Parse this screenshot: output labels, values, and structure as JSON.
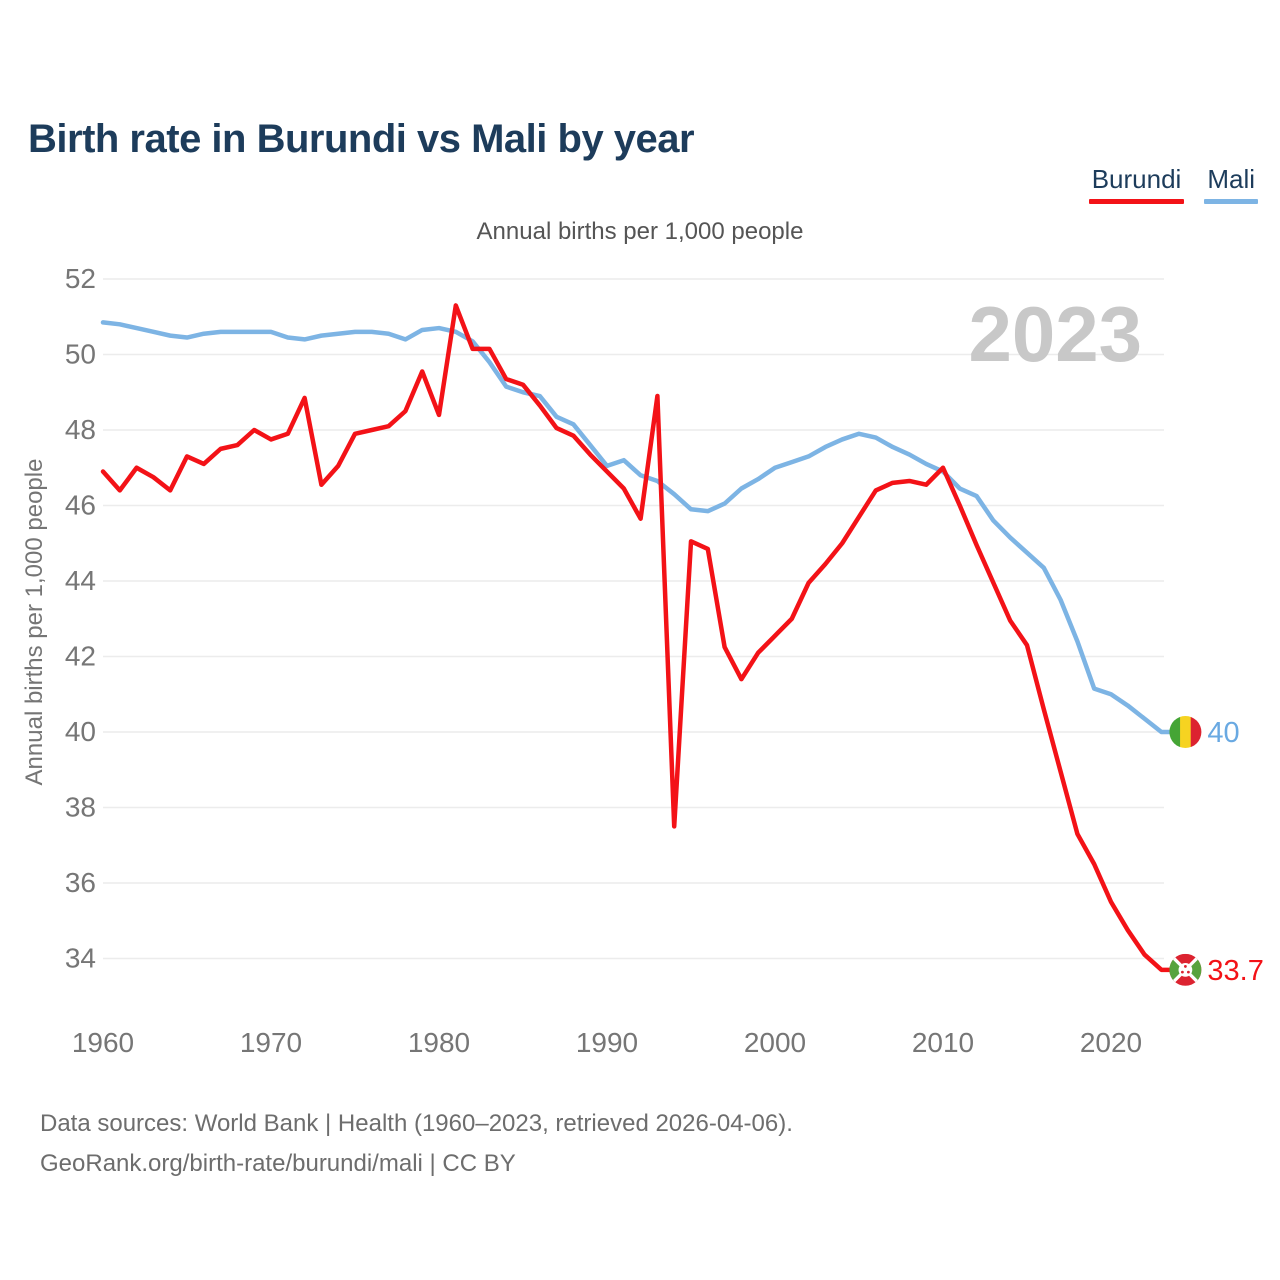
{
  "title": "Birth rate in Burundi vs Mali by year",
  "legend": [
    {
      "label": "Burundi",
      "color": "#f31217"
    },
    {
      "label": "Mali",
      "color": "#7db4e4"
    }
  ],
  "footer": {
    "line1": "Data sources: World Bank | Health (1960–2023, retrieved 2026-04-06).",
    "line2": "GeoRank.org/birth-rate/burundi/mali | CC BY"
  },
  "chart_data": {
    "type": "line",
    "title": "Annual births per 1,000 people",
    "ylabel": "Annual births per 1,000 people",
    "watermark": "2023",
    "x_start": 1960,
    "x_end": 2023,
    "x_ticks": [
      1960,
      1970,
      1980,
      1990,
      2000,
      2010,
      2020
    ],
    "y_ticks": [
      34,
      36,
      38,
      40,
      42,
      44,
      46,
      48,
      50,
      52
    ],
    "ylim": [
      33.2,
      52.6
    ],
    "grid": "horizontal",
    "legend_position": "top-right",
    "series": [
      {
        "name": "Mali",
        "color": "#7db4e4",
        "label_color": "#69a9e2",
        "end_label": "40",
        "flag": "mali",
        "values": [
          50.85,
          50.8,
          50.7,
          50.6,
          50.5,
          50.45,
          50.55,
          50.6,
          50.6,
          50.6,
          50.6,
          50.45,
          50.4,
          50.5,
          50.55,
          50.6,
          50.6,
          50.55,
          50.4,
          50.65,
          50.7,
          50.6,
          50.35,
          49.8,
          49.15,
          49.0,
          48.9,
          48.35,
          48.15,
          47.6,
          47.05,
          47.2,
          46.8,
          46.65,
          46.3,
          45.9,
          45.85,
          46.05,
          46.45,
          46.7,
          47.0,
          47.15,
          47.3,
          47.55,
          47.75,
          47.9,
          47.8,
          47.55,
          47.35,
          47.1,
          46.9,
          46.45,
          46.25,
          45.6,
          45.15,
          44.75,
          44.35,
          43.5,
          42.4,
          41.15,
          41.0,
          40.7,
          40.35,
          40.0
        ]
      },
      {
        "name": "Burundi",
        "color": "#f31217",
        "label_color": "#f31217",
        "end_label": "33.7",
        "flag": "burundi",
        "values": [
          46.9,
          46.4,
          47.0,
          46.75,
          46.4,
          47.3,
          47.1,
          47.5,
          47.6,
          48.0,
          47.75,
          47.9,
          48.85,
          46.55,
          47.05,
          47.9,
          48.0,
          48.1,
          48.5,
          49.55,
          48.4,
          51.3,
          50.15,
          50.15,
          49.35,
          49.2,
          48.65,
          48.05,
          47.85,
          47.35,
          46.9,
          46.45,
          45.65,
          48.9,
          37.5,
          45.05,
          44.85,
          42.25,
          41.4,
          42.1,
          42.55,
          43.0,
          43.95,
          44.45,
          45.0,
          45.7,
          46.4,
          46.6,
          46.65,
          46.55,
          47.0,
          46.0,
          44.95,
          43.95,
          42.95,
          42.3,
          40.6,
          38.95,
          37.3,
          36.5,
          35.5,
          34.75,
          34.1,
          33.7
        ]
      }
    ]
  }
}
